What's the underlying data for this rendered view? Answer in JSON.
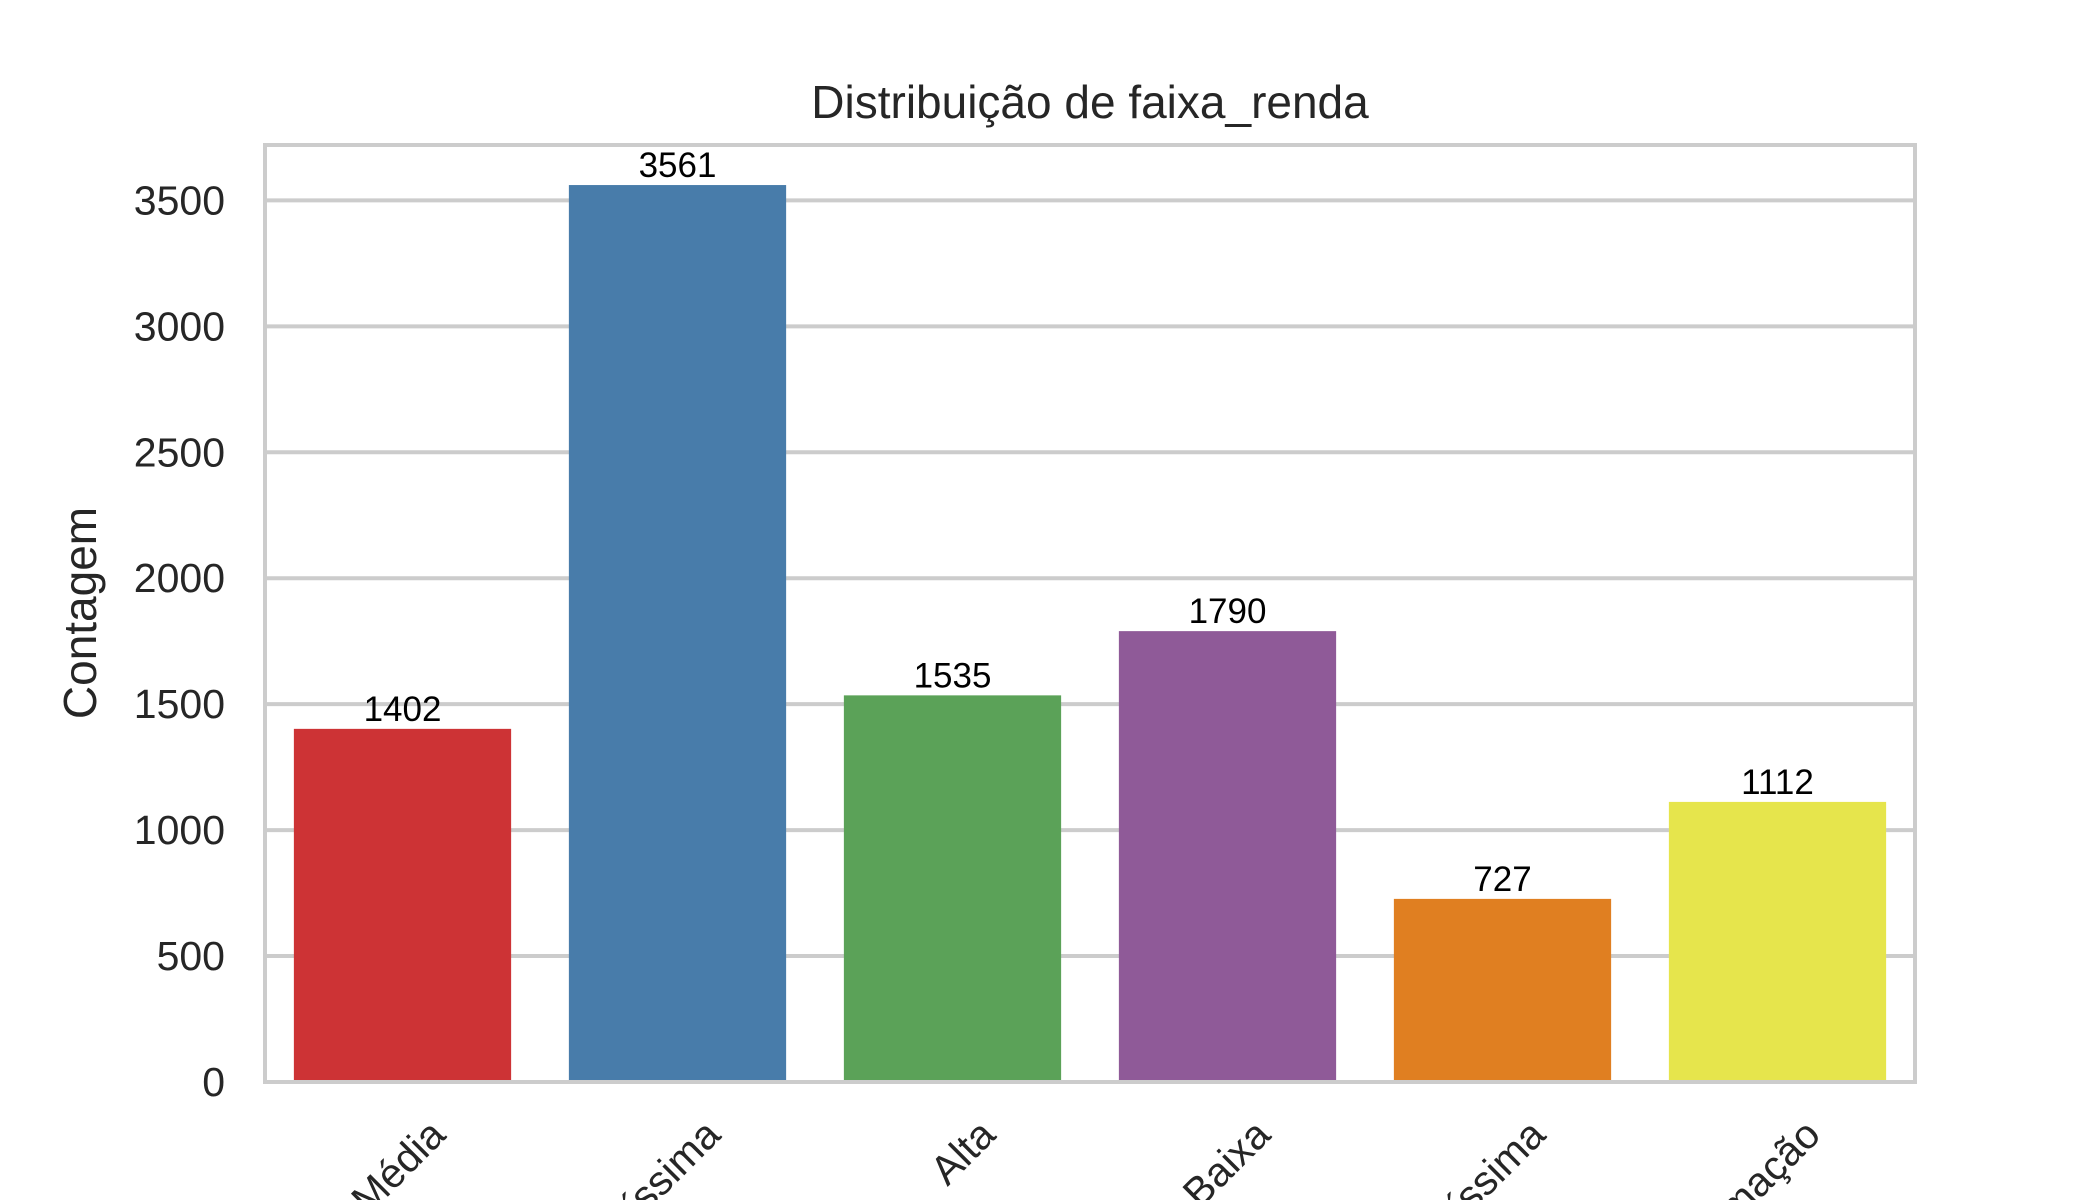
{
  "chart_data": {
    "type": "bar",
    "title": "Distribuição de faixa_renda",
    "xlabel": "",
    "ylabel": "Contagem",
    "categories": [
      "Média",
      "íssima",
      "Alta",
      "Baixa",
      "íssima",
      "mação"
    ],
    "values": [
      1402,
      3561,
      1535,
      1790,
      727,
      1112
    ],
    "data_labels": [
      "1402",
      "3561",
      "1535",
      "1790",
      "727",
      "1112"
    ],
    "colors": [
      "#cd3335",
      "#487caa",
      "#5ba258",
      "#8f5a98",
      "#e07f21",
      "#e6e54c"
    ],
    "ylim": [
      0,
      3720
    ],
    "yticks": [
      0,
      500,
      1000,
      1500,
      2000,
      2500,
      3000,
      3500
    ],
    "ytick_labels": [
      "0",
      "500",
      "1000",
      "1500",
      "2000",
      "2500",
      "3000",
      "3500"
    ],
    "grid": true,
    "style": "whitegrid"
  }
}
